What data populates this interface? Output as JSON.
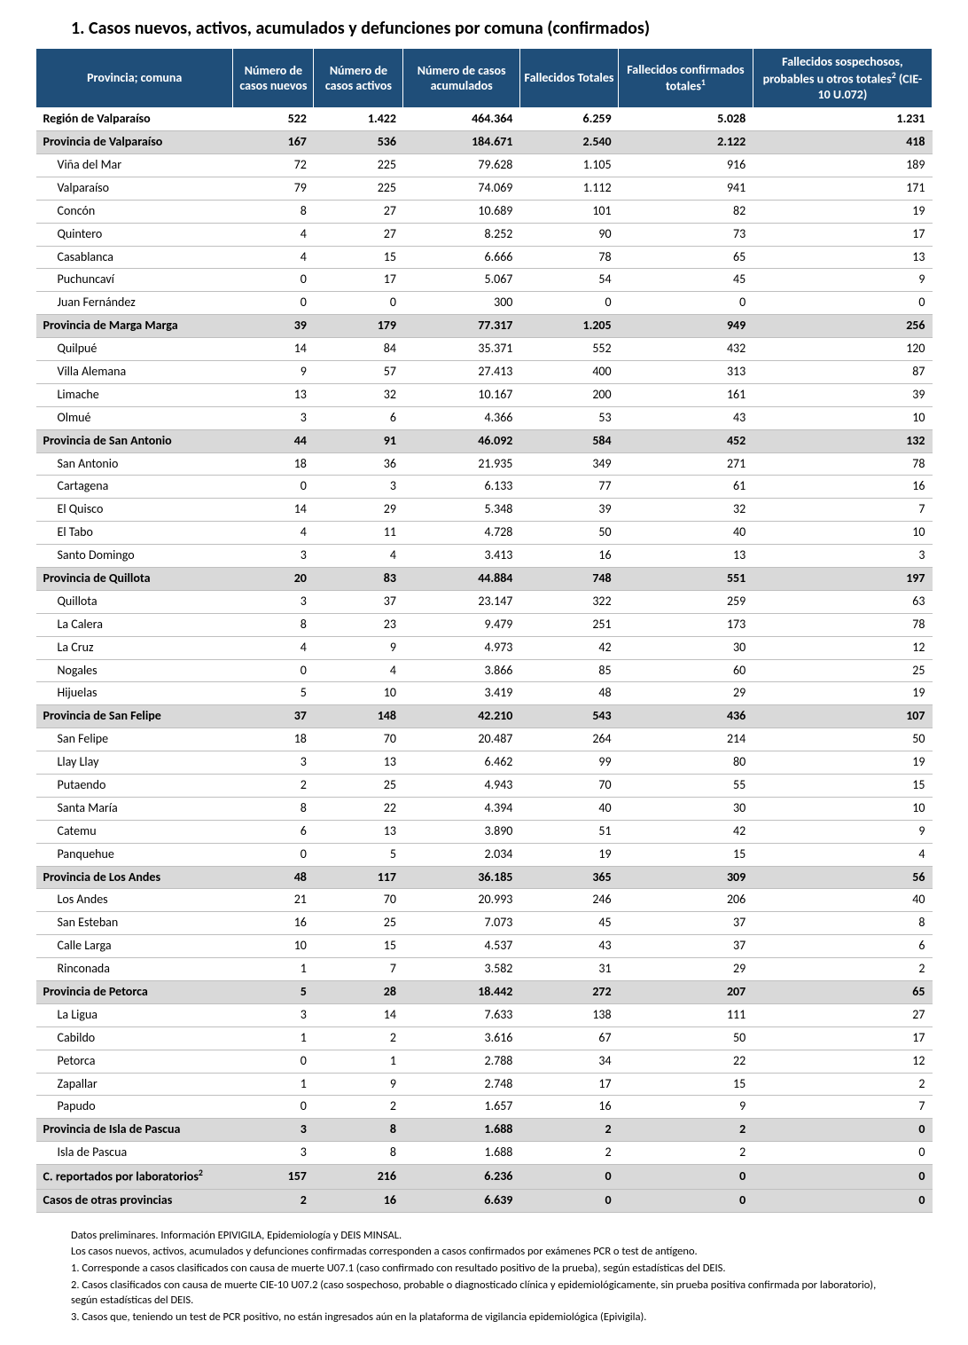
{
  "title": "1.   Casos nuevos, activos, acumulados y defunciones por comuna (confirmados)",
  "colors": {
    "header_bg": "#1f4e79",
    "header_fg": "#ffffff",
    "provincia_bg": "#d9d9d9",
    "row_border": "#bfbfbf",
    "text": "#000000",
    "page_bg": "#ffffff"
  },
  "table": {
    "column_widths_pct": [
      22,
      9,
      10,
      13,
      11,
      15,
      20
    ],
    "columns": [
      "Provincia; comuna",
      "Número de casos nuevos",
      "Número de casos activos",
      "Número de casos acumulados",
      "Fallecidos Totales",
      "Fallecidos confirmados totales¹",
      "Fallecidos sospechosos, probables u otros totales² (CIE-10 U.072)"
    ],
    "rows": [
      {
        "type": "region",
        "cells": [
          "Región de Valparaíso",
          "522",
          "1.422",
          "464.364",
          "6.259",
          "5.028",
          "1.231"
        ]
      },
      {
        "type": "provincia",
        "cells": [
          "Provincia de Valparaíso",
          "167",
          "536",
          "184.671",
          "2.540",
          "2.122",
          "418"
        ]
      },
      {
        "type": "comuna",
        "cells": [
          "Viña del Mar",
          "72",
          "225",
          "79.628",
          "1.105",
          "916",
          "189"
        ]
      },
      {
        "type": "comuna",
        "cells": [
          "Valparaíso",
          "79",
          "225",
          "74.069",
          "1.112",
          "941",
          "171"
        ]
      },
      {
        "type": "comuna",
        "cells": [
          "Concón",
          "8",
          "27",
          "10.689",
          "101",
          "82",
          "19"
        ]
      },
      {
        "type": "comuna",
        "cells": [
          "Quintero",
          "4",
          "27",
          "8.252",
          "90",
          "73",
          "17"
        ]
      },
      {
        "type": "comuna",
        "cells": [
          "Casablanca",
          "4",
          "15",
          "6.666",
          "78",
          "65",
          "13"
        ]
      },
      {
        "type": "comuna",
        "cells": [
          "Puchuncaví",
          "0",
          "17",
          "5.067",
          "54",
          "45",
          "9"
        ]
      },
      {
        "type": "comuna",
        "cells": [
          "Juan Fernández",
          "0",
          "0",
          "300",
          "0",
          "0",
          "0"
        ]
      },
      {
        "type": "provincia",
        "cells": [
          "Provincia de Marga Marga",
          "39",
          "179",
          "77.317",
          "1.205",
          "949",
          "256"
        ]
      },
      {
        "type": "comuna",
        "cells": [
          "Quilpué",
          "14",
          "84",
          "35.371",
          "552",
          "432",
          "120"
        ]
      },
      {
        "type": "comuna",
        "cells": [
          "Villa Alemana",
          "9",
          "57",
          "27.413",
          "400",
          "313",
          "87"
        ]
      },
      {
        "type": "comuna",
        "cells": [
          "Limache",
          "13",
          "32",
          "10.167",
          "200",
          "161",
          "39"
        ]
      },
      {
        "type": "comuna",
        "cells": [
          "Olmué",
          "3",
          "6",
          "4.366",
          "53",
          "43",
          "10"
        ]
      },
      {
        "type": "provincia",
        "cells": [
          "Provincia de San Antonio",
          "44",
          "91",
          "46.092",
          "584",
          "452",
          "132"
        ]
      },
      {
        "type": "comuna",
        "cells": [
          "San Antonio",
          "18",
          "36",
          "21.935",
          "349",
          "271",
          "78"
        ]
      },
      {
        "type": "comuna",
        "cells": [
          "Cartagena",
          "0",
          "3",
          "6.133",
          "77",
          "61",
          "16"
        ]
      },
      {
        "type": "comuna",
        "cells": [
          "El Quisco",
          "14",
          "29",
          "5.348",
          "39",
          "32",
          "7"
        ]
      },
      {
        "type": "comuna",
        "cells": [
          "El Tabo",
          "4",
          "11",
          "4.728",
          "50",
          "40",
          "10"
        ]
      },
      {
        "type": "comuna",
        "cells": [
          "Santo Domingo",
          "3",
          "4",
          "3.413",
          "16",
          "13",
          "3"
        ]
      },
      {
        "type": "provincia",
        "cells": [
          "Provincia de Quillota",
          "20",
          "83",
          "44.884",
          "748",
          "551",
          "197"
        ]
      },
      {
        "type": "comuna",
        "cells": [
          "Quillota",
          "3",
          "37",
          "23.147",
          "322",
          "259",
          "63"
        ]
      },
      {
        "type": "comuna",
        "cells": [
          "La Calera",
          "8",
          "23",
          "9.479",
          "251",
          "173",
          "78"
        ]
      },
      {
        "type": "comuna",
        "cells": [
          "La Cruz",
          "4",
          "9",
          "4.973",
          "42",
          "30",
          "12"
        ]
      },
      {
        "type": "comuna",
        "cells": [
          "Nogales",
          "0",
          "4",
          "3.866",
          "85",
          "60",
          "25"
        ]
      },
      {
        "type": "comuna",
        "cells": [
          "Hijuelas",
          "5",
          "10",
          "3.419",
          "48",
          "29",
          "19"
        ]
      },
      {
        "type": "provincia",
        "cells": [
          "Provincia de San Felipe",
          "37",
          "148",
          "42.210",
          "543",
          "436",
          "107"
        ]
      },
      {
        "type": "comuna",
        "cells": [
          "San Felipe",
          "18",
          "70",
          "20.487",
          "264",
          "214",
          "50"
        ]
      },
      {
        "type": "comuna",
        "cells": [
          "Llay Llay",
          "3",
          "13",
          "6.462",
          "99",
          "80",
          "19"
        ]
      },
      {
        "type": "comuna",
        "cells": [
          "Putaendo",
          "2",
          "25",
          "4.943",
          "70",
          "55",
          "15"
        ]
      },
      {
        "type": "comuna",
        "cells": [
          "Santa María",
          "8",
          "22",
          "4.394",
          "40",
          "30",
          "10"
        ]
      },
      {
        "type": "comuna",
        "cells": [
          "Catemu",
          "6",
          "13",
          "3.890",
          "51",
          "42",
          "9"
        ]
      },
      {
        "type": "comuna",
        "cells": [
          "Panquehue",
          "0",
          "5",
          "2.034",
          "19",
          "15",
          "4"
        ]
      },
      {
        "type": "provincia",
        "cells": [
          "Provincia de Los Andes",
          "48",
          "117",
          "36.185",
          "365",
          "309",
          "56"
        ]
      },
      {
        "type": "comuna",
        "cells": [
          "Los Andes",
          "21",
          "70",
          "20.993",
          "246",
          "206",
          "40"
        ]
      },
      {
        "type": "comuna",
        "cells": [
          "San Esteban",
          "16",
          "25",
          "7.073",
          "45",
          "37",
          "8"
        ]
      },
      {
        "type": "comuna",
        "cells": [
          "Calle Larga",
          "10",
          "15",
          "4.537",
          "43",
          "37",
          "6"
        ]
      },
      {
        "type": "comuna",
        "cells": [
          "Rinconada",
          "1",
          "7",
          "3.582",
          "31",
          "29",
          "2"
        ]
      },
      {
        "type": "provincia",
        "cells": [
          "Provincia de Petorca",
          "5",
          "28",
          "18.442",
          "272",
          "207",
          "65"
        ]
      },
      {
        "type": "comuna",
        "cells": [
          "La Ligua",
          "3",
          "14",
          "7.633",
          "138",
          "111",
          "27"
        ]
      },
      {
        "type": "comuna",
        "cells": [
          "Cabildo",
          "1",
          "2",
          "3.616",
          "67",
          "50",
          "17"
        ]
      },
      {
        "type": "comuna",
        "cells": [
          "Petorca",
          "0",
          "1",
          "2.788",
          "34",
          "22",
          "12"
        ]
      },
      {
        "type": "comuna",
        "cells": [
          "Zapallar",
          "1",
          "9",
          "2.748",
          "17",
          "15",
          "2"
        ]
      },
      {
        "type": "comuna",
        "cells": [
          "Papudo",
          "0",
          "2",
          "1.657",
          "16",
          "9",
          "7"
        ]
      },
      {
        "type": "provincia",
        "cells": [
          "Provincia de Isla de Pascua",
          "3",
          "8",
          "1.688",
          "2",
          "2",
          "0"
        ]
      },
      {
        "type": "comuna",
        "cells": [
          "Isla de Pascua",
          "3",
          "8",
          "1.688",
          "2",
          "2",
          "0"
        ]
      },
      {
        "type": "footer",
        "cells": [
          "C. reportados por laboratorios²",
          "157",
          "216",
          "6.236",
          "0",
          "0",
          "0"
        ]
      },
      {
        "type": "footer",
        "cells": [
          "Casos de otras provincias",
          "2",
          "16",
          "6.639",
          "0",
          "0",
          "0"
        ]
      }
    ]
  },
  "footnotes": [
    "Datos preliminares. Información EPIVIGILA, Epidemiología y DEIS MINSAL.",
    "Los casos nuevos, activos, acumulados y defunciones confirmadas corresponden a casos confirmados por exámenes PCR o test de antígeno.",
    "1. Corresponde a casos clasificados con causa de muerte U07.1 (caso confirmado con resultado positivo de la prueba), según estadísticas del DEIS.",
    "2. Casos clasificados con causa de muerte CIE-10 U07.2 (caso sospechoso, probable o diagnosticado clínica y epidemiológicamente, sin prueba positiva confirmada por laboratorio), según estadísticas del DEIS.",
    "3. Casos que, teniendo un test de PCR positivo, no están ingresados aún en la plataforma de vigilancia epidemiológica (Epivigila)."
  ]
}
